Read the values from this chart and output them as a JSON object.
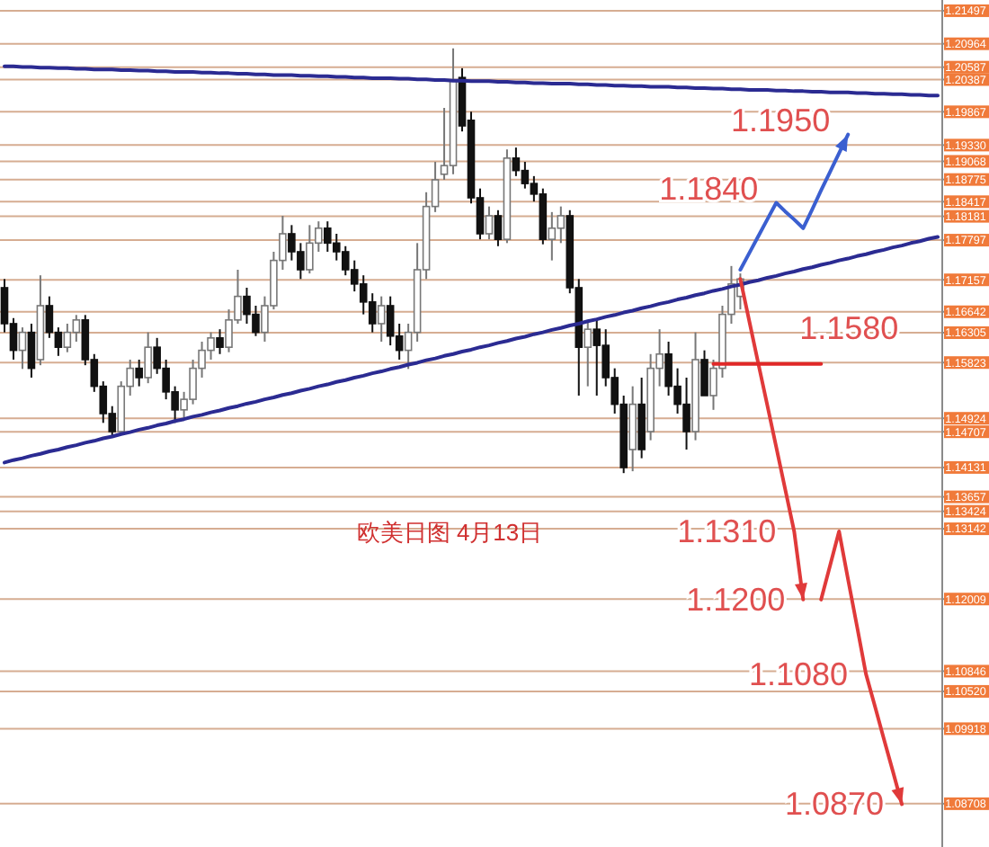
{
  "chart_data": {
    "type": "candlestick",
    "title": "欧美日图   4月13日",
    "categories": [
      null,
      null,
      null,
      null,
      null,
      null,
      null,
      null,
      null,
      null,
      null,
      null,
      null,
      null,
      null,
      null,
      null,
      null,
      null,
      null,
      null,
      null,
      null,
      null,
      null,
      null,
      null,
      null,
      null,
      null,
      null,
      null,
      null,
      null,
      null,
      null,
      null,
      null,
      null,
      null,
      null,
      null,
      null,
      null,
      null,
      null,
      null,
      null,
      null,
      null,
      null,
      null,
      null,
      null,
      null,
      null,
      null,
      null,
      null,
      null,
      null,
      null,
      null,
      null,
      null,
      null,
      null,
      null,
      null,
      null,
      null,
      null,
      null,
      null,
      null,
      null,
      null,
      null,
      null,
      null,
      null,
      null,
      null,
      null,
      null,
      null,
      null,
      null,
      null,
      null,
      null,
      null,
      null,
      null,
      null,
      null,
      null,
      null,
      null,
      null,
      null,
      null,
      null,
      null,
      null
    ],
    "ohlc": [
      [
        1.1703,
        1.1717,
        1.1631,
        1.1645
      ],
      [
        1.1645,
        1.1654,
        1.1587,
        1.1602
      ],
      [
        1.1602,
        1.1639,
        1.1572,
        1.1631
      ],
      [
        1.1631,
        1.1645,
        1.1558,
        1.1573
      ],
      [
        1.1587,
        1.1723,
        1.1578,
        1.1674
      ],
      [
        1.1674,
        1.1689,
        1.1622,
        1.1631
      ],
      [
        1.1631,
        1.1639,
        1.1593,
        1.1607
      ],
      [
        1.1607,
        1.1645,
        1.1599,
        1.1631
      ],
      [
        1.1631,
        1.1659,
        1.1616,
        1.1651
      ],
      [
        1.1651,
        1.1659,
        1.1578,
        1.1587
      ],
      [
        1.1587,
        1.1596,
        1.1535,
        1.1544
      ],
      [
        1.1544,
        1.1552,
        1.1485,
        1.15
      ],
      [
        1.15,
        1.1512,
        1.1462,
        1.1471
      ],
      [
        1.1471,
        1.1552,
        1.1465,
        1.1544
      ],
      [
        1.1544,
        1.1587,
        1.1529,
        1.1573
      ],
      [
        1.1573,
        1.1587,
        1.1544,
        1.1558
      ],
      [
        1.1558,
        1.1631,
        1.1549,
        1.1607
      ],
      [
        1.1607,
        1.1622,
        1.1564,
        1.1573
      ],
      [
        1.1573,
        1.1587,
        1.1523,
        1.1535
      ],
      [
        1.1535,
        1.1544,
        1.1485,
        1.1506
      ],
      [
        1.1506,
        1.1535,
        1.1491,
        1.1523
      ],
      [
        1.1523,
        1.1587,
        1.1515,
        1.1573
      ],
      [
        1.1573,
        1.1616,
        1.1558,
        1.1602
      ],
      [
        1.1602,
        1.1631,
        1.1587,
        1.1622
      ],
      [
        1.1622,
        1.1636,
        1.1596,
        1.1607
      ],
      [
        1.1607,
        1.1668,
        1.1599,
        1.1651
      ],
      [
        1.1651,
        1.1732,
        1.1645,
        1.1689
      ],
      [
        1.1689,
        1.1703,
        1.1645,
        1.166
      ],
      [
        1.166,
        1.1674,
        1.1625,
        1.1631
      ],
      [
        1.1631,
        1.1689,
        1.1616,
        1.1674
      ],
      [
        1.1674,
        1.1761,
        1.1668,
        1.1747
      ],
      [
        1.1747,
        1.1819,
        1.1732,
        1.179
      ],
      [
        1.179,
        1.1804,
        1.1747,
        1.1761
      ],
      [
        1.1761,
        1.1775,
        1.1717,
        1.1732
      ],
      [
        1.1732,
        1.1804,
        1.1726,
        1.1775
      ],
      [
        1.1775,
        1.181,
        1.1761,
        1.1799
      ],
      [
        1.1799,
        1.181,
        1.1761,
        1.1775
      ],
      [
        1.1775,
        1.179,
        1.1747,
        1.1761
      ],
      [
        1.1761,
        1.177,
        1.1723,
        1.1732
      ],
      [
        1.1732,
        1.1747,
        1.1697,
        1.1709
      ],
      [
        1.1709,
        1.1723,
        1.166,
        1.168
      ],
      [
        1.168,
        1.1694,
        1.1631,
        1.1645
      ],
      [
        1.1645,
        1.1689,
        1.1616,
        1.1674
      ],
      [
        1.1674,
        1.1689,
        1.161,
        1.1625
      ],
      [
        1.1625,
        1.1645,
        1.1587,
        1.1602
      ],
      [
        1.1602,
        1.1645,
        1.1572,
        1.1631
      ],
      [
        1.1631,
        1.1775,
        1.1616,
        1.1732
      ],
      [
        1.1732,
        1.1857,
        1.1717,
        1.1834
      ],
      [
        1.1834,
        1.1906,
        1.1825,
        1.1877
      ],
      [
        1.1886,
        1.1993,
        1.1877,
        1.19
      ],
      [
        1.19,
        1.2089,
        1.1886,
        1.2036
      ],
      [
        1.2042,
        1.2057,
        1.1955,
        1.1964
      ],
      [
        1.1973,
        1.1987,
        1.1839,
        1.1848
      ],
      [
        1.1848,
        1.1863,
        1.1781,
        1.179
      ],
      [
        1.179,
        1.1834,
        1.1781,
        1.1819
      ],
      [
        1.1819,
        1.1828,
        1.177,
        1.1781
      ],
      [
        1.1781,
        1.1926,
        1.1775,
        1.1912
      ],
      [
        1.1912,
        1.1929,
        1.1883,
        1.1892
      ],
      [
        1.1892,
        1.1906,
        1.1863,
        1.1871
      ],
      [
        1.1871,
        1.1883,
        1.1842,
        1.1854
      ],
      [
        1.1854,
        1.1863,
        1.1773,
        1.1781
      ],
      [
        1.1781,
        1.1825,
        1.1747,
        1.1799
      ],
      [
        1.1799,
        1.1834,
        1.1775,
        1.1819
      ],
      [
        1.1819,
        1.1828,
        1.1694,
        1.1703
      ],
      [
        1.1703,
        1.1717,
        1.1529,
        1.1607
      ],
      [
        1.1607,
        1.1651,
        1.1544,
        1.1636
      ],
      [
        1.1636,
        1.1651,
        1.1529,
        1.161
      ],
      [
        1.161,
        1.1636,
        1.1544,
        1.1558
      ],
      [
        1.1558,
        1.1573,
        1.15,
        1.1515
      ],
      [
        1.1515,
        1.1529,
        1.1404,
        1.1413
      ],
      [
        1.1442,
        1.1544,
        1.1407,
        1.1515
      ],
      [
        1.1515,
        1.1558,
        1.1428,
        1.1442
      ],
      [
        1.1471,
        1.1596,
        1.1457,
        1.1573
      ],
      [
        1.1573,
        1.1636,
        1.1544,
        1.1596
      ],
      [
        1.1596,
        1.1616,
        1.1529,
        1.1544
      ],
      [
        1.1544,
        1.1573,
        1.15,
        1.1515
      ],
      [
        1.1515,
        1.1558,
        1.1442,
        1.1471
      ],
      [
        1.1471,
        1.1631,
        1.1457,
        1.1587
      ],
      [
        1.1587,
        1.1602,
        1.1529,
        1.1529
      ],
      [
        1.1529,
        1.1587,
        1.1506,
        1.1573
      ],
      [
        1.1573,
        1.1674,
        1.1558,
        1.166
      ],
      [
        1.166,
        1.1738,
        1.1645,
        1.1709
      ],
      [
        1.1689,
        1.1726,
        1.1668,
        1.1717
      ],
      null,
      null,
      null,
      null,
      null,
      null,
      null,
      null,
      null,
      null,
      null,
      null,
      null,
      null,
      null,
      null,
      null,
      null,
      null,
      null,
      null,
      null
    ],
    "series": [
      {
        "type": "line",
        "color": "#2b2b92",
        "values": [
          1.206,
          1.206,
          1.2059,
          1.2059,
          1.2058,
          1.2058,
          1.2057,
          1.2057,
          1.2056,
          1.2056,
          1.2055,
          1.2055,
          1.2055,
          1.2054,
          1.2054,
          1.2053,
          1.2053,
          1.2052,
          1.2052,
          1.2051,
          1.2051,
          1.2051,
          1.205,
          1.205,
          1.2049,
          1.2049,
          1.2048,
          1.2048,
          1.2047,
          1.2047,
          1.2046,
          1.2046,
          1.2046,
          1.2045,
          1.2045,
          1.2044,
          1.2044,
          1.2043,
          1.2043,
          1.2042,
          1.2042,
          1.2041,
          1.2041,
          1.2041,
          1.204,
          1.204,
          1.2039,
          1.2039,
          1.2038,
          1.2038,
          1.2037,
          1.2037,
          1.2036,
          1.2036,
          1.2036,
          1.2035,
          1.2035,
          1.2034,
          1.2034,
          1.2033,
          1.2033,
          1.2032,
          1.2032,
          1.2032,
          1.2031,
          1.2031,
          1.203,
          1.203,
          1.2029,
          1.2029,
          1.2028,
          1.2028,
          1.2027,
          1.2027,
          1.2027,
          1.2026,
          1.2026,
          1.2025,
          1.2025,
          1.2024,
          1.2024,
          1.2023,
          1.2023,
          1.2022,
          1.2022,
          1.2022,
          1.2021,
          1.2021,
          1.202,
          1.202,
          1.2019,
          1.2019,
          1.2018,
          1.2018,
          1.2018,
          1.2017,
          1.2017,
          1.2016,
          1.2016,
          1.2015,
          1.2015,
          1.2014,
          1.2014,
          1.2013,
          1.2013
        ]
      },
      {
        "type": "line",
        "color": "#2b2b92",
        "values": [
          1.1421,
          1.1425,
          1.1428,
          1.1432,
          1.1435,
          1.1439,
          1.1442,
          1.1446,
          1.1449,
          1.1453,
          1.1456,
          1.146,
          1.1463,
          1.1467,
          1.147,
          1.1474,
          1.1477,
          1.1481,
          1.1484,
          1.1488,
          1.1491,
          1.1495,
          1.1498,
          1.1502,
          1.1505,
          1.1509,
          1.1512,
          1.1516,
          1.1519,
          1.1523,
          1.1526,
          1.153,
          1.1533,
          1.1537,
          1.154,
          1.1544,
          1.1547,
          1.1551,
          1.1554,
          1.1558,
          1.1561,
          1.1565,
          1.1568,
          1.1572,
          1.1575,
          1.1579,
          1.1582,
          1.1586,
          1.1589,
          1.1593,
          1.1596,
          1.16,
          1.1603,
          1.1607,
          1.161,
          1.1614,
          1.1617,
          1.1621,
          1.1624,
          1.1628,
          1.1631,
          1.1635,
          1.1638,
          1.1642,
          1.1645,
          1.1649,
          1.1652,
          1.1656,
          1.1659,
          1.1663,
          1.1666,
          1.167,
          1.1673,
          1.1677,
          1.168,
          1.1684,
          1.1687,
          1.1691,
          1.1694,
          1.1698,
          1.1701,
          1.1705,
          1.1708,
          1.1712,
          1.1715,
          1.1719,
          1.1722,
          1.1726,
          1.1729,
          1.1733,
          1.1736,
          1.174,
          1.1743,
          1.1747,
          1.175,
          1.1754,
          1.1757,
          1.1761,
          1.1764,
          1.1768,
          1.1771,
          1.1775,
          1.1778,
          1.1782,
          1.1785
        ]
      },
      {
        "type": "line",
        "color": "#3b5fd0",
        "values": [
          null,
          null,
          null,
          null,
          null,
          null,
          null,
          null,
          null,
          null,
          null,
          null,
          null,
          null,
          null,
          null,
          null,
          null,
          null,
          null,
          null,
          null,
          null,
          null,
          null,
          null,
          null,
          null,
          null,
          null,
          null,
          null,
          null,
          null,
          null,
          null,
          null,
          null,
          null,
          null,
          null,
          null,
          null,
          null,
          null,
          null,
          null,
          null,
          null,
          null,
          null,
          null,
          null,
          null,
          null,
          null,
          null,
          null,
          null,
          null,
          null,
          null,
          null,
          null,
          null,
          null,
          null,
          null,
          null,
          null,
          null,
          null,
          null,
          null,
          null,
          null,
          null,
          null,
          null,
          null,
          null,
          null,
          1.1732,
          1.1759,
          1.1786,
          1.1813,
          1.184,
          1.1826,
          1.1813,
          1.1799,
          1.1829,
          1.186,
          1.189,
          1.192,
          1.195,
          null,
          null,
          null,
          null,
          null,
          null,
          null,
          null,
          null,
          null
        ],
        "value_labels": [
          null,
          null,
          null,
          null,
          null,
          null,
          null,
          null,
          null,
          null,
          null,
          null,
          null,
          null,
          null,
          null,
          null,
          null,
          null,
          null,
          null,
          null,
          null,
          null,
          null,
          null,
          null,
          null,
          null,
          null,
          null,
          null,
          null,
          null,
          null,
          null,
          null,
          null,
          null,
          null,
          null,
          null,
          null,
          null,
          null,
          null,
          null,
          null,
          null,
          null,
          null,
          null,
          null,
          null,
          null,
          null,
          null,
          null,
          null,
          null,
          null,
          null,
          null,
          null,
          null,
          null,
          null,
          null,
          null,
          null,
          null,
          null,
          null,
          null,
          null,
          null,
          null,
          null,
          null,
          null,
          null,
          null,
          null,
          null,
          null,
          null,
          "1.1840",
          null,
          null,
          null,
          null,
          null,
          null,
          null,
          "1.1950",
          null,
          null,
          null,
          null,
          null,
          null,
          null,
          null,
          null,
          null
        ]
      },
      {
        "type": "line",
        "color": "#e03a3a",
        "values": [
          null,
          null,
          null,
          null,
          null,
          null,
          null,
          null,
          null,
          null,
          null,
          null,
          null,
          null,
          null,
          null,
          null,
          null,
          null,
          null,
          null,
          null,
          null,
          null,
          null,
          null,
          null,
          null,
          null,
          null,
          null,
          null,
          null,
          null,
          null,
          null,
          null,
          null,
          null,
          null,
          null,
          null,
          null,
          null,
          null,
          null,
          null,
          null,
          null,
          null,
          null,
          null,
          null,
          null,
          null,
          null,
          null,
          null,
          null,
          null,
          null,
          null,
          null,
          null,
          null,
          null,
          null,
          null,
          null,
          null,
          null,
          null,
          null,
          null,
          null,
          null,
          null,
          null,
          null,
          null,
          null,
          null,
          1.1717,
          1.1649,
          1.1581,
          1.1514,
          1.1446,
          1.1378,
          1.131,
          1.12,
          null,
          1.12,
          1.1255,
          1.131,
          1.1233,
          1.1157,
          1.108,
          1.1028,
          1.0975,
          1.0923,
          1.087,
          null,
          null,
          null,
          null
        ],
        "value_labels": [
          null,
          null,
          null,
          null,
          null,
          null,
          null,
          null,
          null,
          null,
          null,
          null,
          null,
          null,
          null,
          null,
          null,
          null,
          null,
          null,
          null,
          null,
          null,
          null,
          null,
          null,
          null,
          null,
          null,
          null,
          null,
          null,
          null,
          null,
          null,
          null,
          null,
          null,
          null,
          null,
          null,
          null,
          null,
          null,
          null,
          null,
          null,
          null,
          null,
          null,
          null,
          null,
          null,
          null,
          null,
          null,
          null,
          null,
          null,
          null,
          null,
          null,
          null,
          null,
          null,
          null,
          null,
          null,
          null,
          null,
          null,
          null,
          null,
          null,
          null,
          null,
          null,
          null,
          null,
          null,
          null,
          null,
          null,
          null,
          null,
          null,
          null,
          null,
          "1.1310",
          "1.1200",
          null,
          null,
          null,
          null,
          null,
          null,
          "1.1080",
          null,
          null,
          null,
          "1.0870",
          null,
          null,
          null,
          null
        ]
      },
      {
        "type": "line",
        "color": "#e02828",
        "values": [
          null,
          null,
          null,
          null,
          null,
          null,
          null,
          null,
          null,
          null,
          null,
          null,
          null,
          null,
          null,
          null,
          null,
          null,
          null,
          null,
          null,
          null,
          null,
          null,
          null,
          null,
          null,
          null,
          null,
          null,
          null,
          null,
          null,
          null,
          null,
          null,
          null,
          null,
          null,
          null,
          null,
          null,
          null,
          null,
          null,
          null,
          null,
          null,
          null,
          null,
          null,
          null,
          null,
          null,
          null,
          null,
          null,
          null,
          null,
          null,
          null,
          null,
          null,
          null,
          null,
          null,
          null,
          null,
          null,
          null,
          null,
          null,
          null,
          null,
          null,
          null,
          null,
          null,
          null,
          1.158,
          1.158,
          1.158,
          1.158,
          1.158,
          1.158,
          1.158,
          1.158,
          1.158,
          1.158,
          1.158,
          1.158,
          1.158,
          null,
          null,
          null,
          null,
          null,
          null,
          null,
          null,
          null,
          null,
          null,
          null,
          null
        ],
        "value_labels": [
          null,
          null,
          null,
          null,
          null,
          null,
          null,
          null,
          null,
          null,
          null,
          null,
          null,
          null,
          null,
          null,
          null,
          null,
          null,
          null,
          null,
          null,
          null,
          null,
          null,
          null,
          null,
          null,
          null,
          null,
          null,
          null,
          null,
          null,
          null,
          null,
          null,
          null,
          null,
          null,
          null,
          null,
          null,
          null,
          null,
          null,
          null,
          null,
          null,
          null,
          null,
          null,
          null,
          null,
          null,
          null,
          null,
          null,
          null,
          null,
          null,
          null,
          null,
          null,
          null,
          null,
          null,
          null,
          null,
          null,
          null,
          null,
          null,
          null,
          null,
          null,
          null,
          null,
          null,
          null,
          null,
          null,
          null,
          null,
          null,
          null,
          null,
          null,
          null,
          null,
          null,
          "1.1580",
          null,
          null,
          null,
          null,
          null,
          null,
          null,
          null,
          null,
          null,
          null,
          null,
          null
        ]
      }
    ],
    "ylim": [
      1.0801,
      1.2167
    ],
    "yticks": [
      1.21497,
      1.20964,
      1.20587,
      1.20387,
      1.19867,
      {
        "value": 1.1933,
        "label": "1.19330"
      },
      1.19068,
      1.18775,
      1.18417,
      1.18181,
      1.17797,
      1.17157,
      1.16642,
      1.16305,
      1.15823,
      1.14924,
      1.14707,
      1.14131,
      1.13657,
      1.13424,
      1.13142,
      1.12009,
      1.10846,
      {
        "value": 1.1052,
        "label": "1.10520"
      },
      1.09918,
      1.08708
    ],
    "grid": "y",
    "tick_labels": "y"
  }
}
